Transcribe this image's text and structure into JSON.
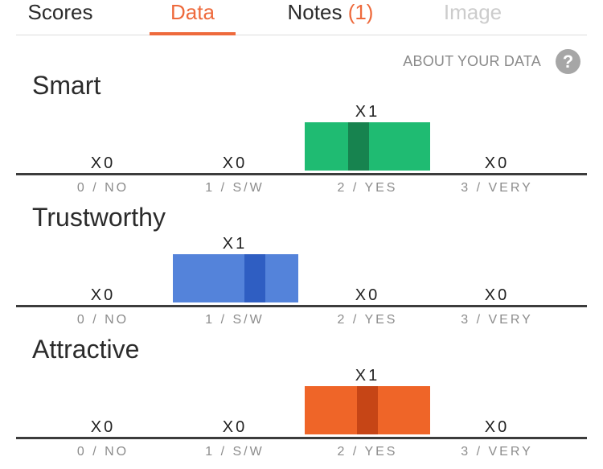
{
  "tabs": [
    {
      "label": "Scores",
      "state": "normal"
    },
    {
      "label": "Data",
      "state": "active"
    },
    {
      "label": "Notes",
      "count": "(1)",
      "state": "normal"
    },
    {
      "label": "Image",
      "state": "disabled"
    }
  ],
  "about": {
    "label": "ABOUT YOUR DATA",
    "icon": "help-circle-icon",
    "glyph": "?"
  },
  "scale_labels": [
    "0 / NO",
    "1 / S/W",
    "2 / YES",
    "3 / VERY"
  ],
  "sections": [
    {
      "title": "Smart",
      "counts": [
        "X0",
        "X0",
        "X1",
        "X0"
      ],
      "selected_index": 2,
      "bar_color": "#1fbb72",
      "marker_color": "#17834f"
    },
    {
      "title": "Trustworthy",
      "counts": [
        "X0",
        "X1",
        "X0",
        "X0"
      ],
      "selected_index": 1,
      "bar_color": "#5483da",
      "marker_color": "#2f5ec2"
    },
    {
      "title": "Attractive",
      "counts": [
        "X0",
        "X0",
        "X1",
        "X0"
      ],
      "selected_index": 2,
      "bar_color": "#ef6528",
      "marker_color": "#c64516"
    }
  ]
}
